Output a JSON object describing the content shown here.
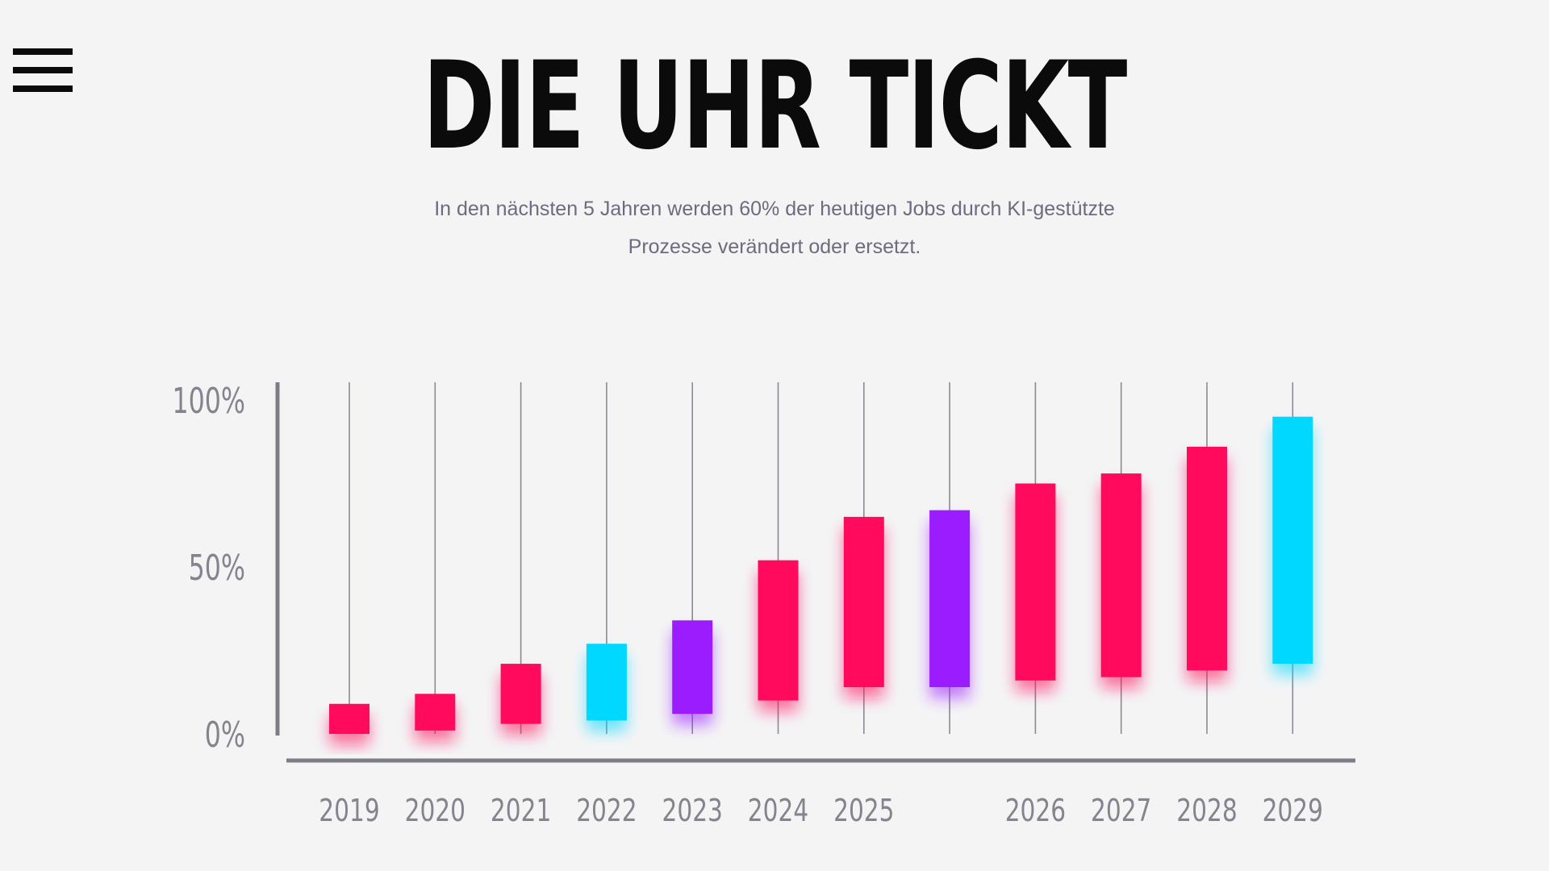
{
  "header": {
    "title": "DIE UHR TICKT",
    "subtitle_line1": "In den nächsten 5 Jahren werden 60% der heutigen Jobs durch KI-gestützte",
    "subtitle_line2": "Prozesse verändert oder ersetzt."
  },
  "menu": {
    "icon": "hamburger-menu-icon"
  },
  "colors": {
    "background": "#f4f4f5",
    "pink": "#ff0a5c",
    "cyan": "#00d8ff",
    "purple": "#9b1dff",
    "axis": "#7d7d86",
    "wick": "#8a8a92",
    "text_muted": "#6e6b7e"
  },
  "chart_data": {
    "type": "candlestick",
    "title": "DIE UHR TICKT",
    "ylim": [
      0,
      100
    ],
    "yticks": [
      {
        "value": 0,
        "label": "0%"
      },
      {
        "value": 50,
        "label": "50%"
      },
      {
        "value": 100,
        "label": "100%"
      }
    ],
    "categories": [
      "2019",
      "2020",
      "2021",
      "2022",
      "2023",
      "2024",
      "2025",
      "",
      "2026",
      "2027",
      "2028",
      "2029"
    ],
    "candles": [
      {
        "label": "2019",
        "low": 0,
        "high": 9,
        "color": "pink"
      },
      {
        "label": "2020",
        "low": 1,
        "high": 12,
        "color": "pink"
      },
      {
        "label": "2021",
        "low": 3,
        "high": 21,
        "color": "pink"
      },
      {
        "label": "2022",
        "low": 4,
        "high": 27,
        "color": "cyan"
      },
      {
        "label": "2023",
        "low": 6,
        "high": 34,
        "color": "purple"
      },
      {
        "label": "2024",
        "low": 10,
        "high": 52,
        "color": "pink"
      },
      {
        "label": "2025",
        "low": 14,
        "high": 65,
        "color": "pink"
      },
      {
        "label": "",
        "low": 14,
        "high": 67,
        "color": "purple"
      },
      {
        "label": "2026",
        "low": 16,
        "high": 75,
        "color": "pink"
      },
      {
        "label": "2027",
        "low": 17,
        "high": 78,
        "color": "pink"
      },
      {
        "label": "2028",
        "low": 19,
        "high": 86,
        "color": "pink"
      },
      {
        "label": "2029",
        "low": 21,
        "high": 95,
        "color": "cyan"
      }
    ]
  }
}
